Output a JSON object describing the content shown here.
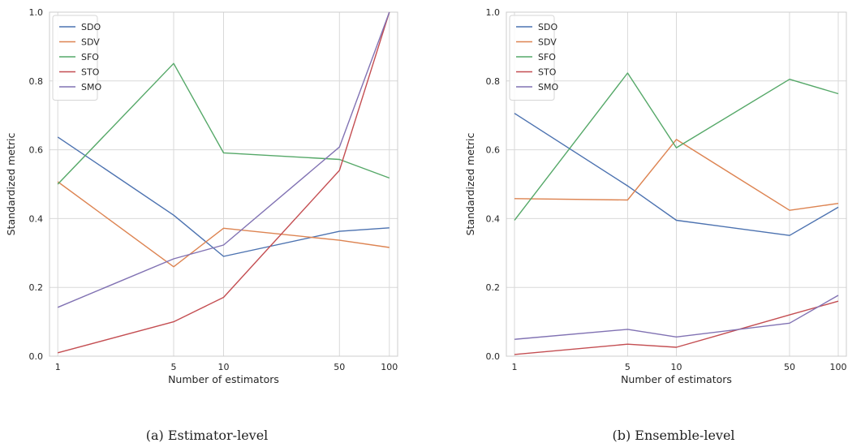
{
  "chart_data": [
    {
      "type": "line",
      "title": "",
      "caption": "(a) Estimator-level",
      "xlabel": "Number of estimators",
      "ylabel": "Standardized metric",
      "x": [
        1,
        5,
        10,
        50,
        100
      ],
      "x_scale": "log",
      "xticks": [
        "1",
        "5",
        "10",
        "50",
        "100"
      ],
      "ylim": [
        0.0,
        1.0
      ],
      "yticks": [
        "0.0",
        "0.2",
        "0.4",
        "0.6",
        "0.8",
        "1.0"
      ],
      "grid": true,
      "legend_position": "top-left",
      "series": [
        {
          "name": "SDO",
          "color": "#4c72b0",
          "values": [
            0.637,
            0.41,
            0.29,
            0.363,
            0.373
          ]
        },
        {
          "name": "SDV",
          "color": "#dd8452",
          "values": [
            0.507,
            0.26,
            0.372,
            0.337,
            0.316
          ]
        },
        {
          "name": "SFO",
          "color": "#55a868",
          "values": [
            0.5,
            0.851,
            0.591,
            0.572,
            0.518
          ]
        },
        {
          "name": "STO",
          "color": "#c44e52",
          "values": [
            0.01,
            0.1,
            0.171,
            0.54,
            1.0
          ]
        },
        {
          "name": "SMO",
          "color": "#8172b3",
          "values": [
            0.142,
            0.283,
            0.323,
            0.608,
            1.0
          ]
        }
      ]
    },
    {
      "type": "line",
      "title": "",
      "caption": "(b) Ensemble-level",
      "xlabel": "Number of estimators",
      "ylabel": "Standardized metric",
      "x": [
        1,
        5,
        10,
        50,
        100
      ],
      "x_scale": "log",
      "xticks": [
        "1",
        "5",
        "10",
        "50",
        "100"
      ],
      "ylim": [
        0.0,
        1.0
      ],
      "yticks": [
        "0.0",
        "0.2",
        "0.4",
        "0.6",
        "0.8",
        "1.0"
      ],
      "grid": true,
      "legend_position": "top-left",
      "series": [
        {
          "name": "SDO",
          "color": "#4c72b0",
          "values": [
            0.706,
            0.495,
            0.395,
            0.351,
            0.433
          ]
        },
        {
          "name": "SDV",
          "color": "#dd8452",
          "values": [
            0.458,
            0.454,
            0.63,
            0.424,
            0.444
          ]
        },
        {
          "name": "SFO",
          "color": "#55a868",
          "values": [
            0.395,
            0.823,
            0.606,
            0.805,
            0.763
          ]
        },
        {
          "name": "STO",
          "color": "#c44e52",
          "values": [
            0.005,
            0.035,
            0.026,
            0.12,
            0.16
          ]
        },
        {
          "name": "SMO",
          "color": "#8172b3",
          "values": [
            0.049,
            0.078,
            0.056,
            0.096,
            0.177
          ]
        }
      ]
    }
  ],
  "style": {
    "grid_color": "#d9d9d9",
    "axis_color": "#cccccc",
    "text_color": "#262626"
  }
}
